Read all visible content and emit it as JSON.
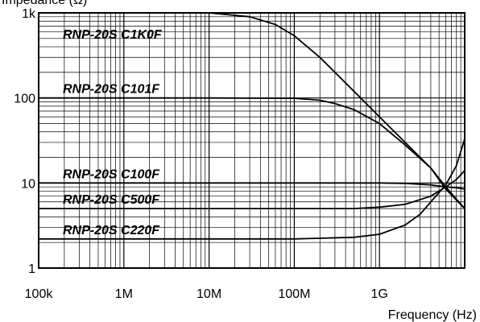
{
  "chart_data": {
    "type": "line",
    "title": "",
    "xlabel": "Frequency (Hz)",
    "ylabel": "Impedance (Ω)",
    "xscale": "log",
    "yscale": "log",
    "xlim": [
      100000,
      10000000000
    ],
    "ylim": [
      1,
      1000
    ],
    "grid": true,
    "x_ticks": [
      {
        "value": 100000,
        "label": "100k"
      },
      {
        "value": 1000000,
        "label": "1M"
      },
      {
        "value": 10000000,
        "label": "10M"
      },
      {
        "value": 100000000,
        "label": "100M"
      },
      {
        "value": 1000000000,
        "label": "1G"
      }
    ],
    "y_ticks": [
      {
        "value": 1,
        "label": "1"
      },
      {
        "value": 10,
        "label": "10"
      },
      {
        "value": 100,
        "label": "100"
      },
      {
        "value": 1000,
        "label": "1k"
      }
    ],
    "series": [
      {
        "name": "RNP-20S C1K0F",
        "x": [
          100000,
          1000000,
          10000000,
          30000000,
          60000000,
          100000000,
          200000000,
          300000000,
          500000000,
          1000000000,
          2000000000,
          4000000000,
          6000000000,
          10000000000
        ],
        "y": [
          1000,
          1000,
          1000,
          900,
          730,
          540,
          300,
          200,
          120,
          60,
          30,
          15,
          8.5,
          5
        ]
      },
      {
        "name": "RNP-20S C101F",
        "x": [
          100000,
          1000000,
          10000000,
          100000000,
          200000000,
          300000000,
          500000000,
          1000000000,
          2000000000,
          4000000000,
          6000000000,
          10000000000
        ],
        "y": [
          100,
          100,
          100,
          99,
          94,
          86,
          73,
          50,
          28,
          15,
          9,
          5
        ]
      },
      {
        "name": "RNP-20S C100F",
        "x": [
          100000,
          1000000,
          10000000,
          100000000,
          1000000000,
          2000000000,
          4000000000,
          6000000000,
          8000000000,
          10000000000
        ],
        "y": [
          10,
          10,
          10,
          10,
          10,
          9.9,
          9.5,
          9,
          8.8,
          8.5
        ]
      },
      {
        "name": "RNP-20S C500F",
        "x": [
          100000,
          1000000,
          10000000,
          100000000,
          500000000,
          1000000000,
          2000000000,
          4000000000,
          6000000000,
          8000000000,
          10000000000
        ],
        "y": [
          5,
          5,
          5,
          5,
          5,
          5.2,
          5.6,
          7,
          9,
          11,
          14
        ]
      },
      {
        "name": "RNP-20S C220F",
        "x": [
          100000,
          1000000,
          10000000,
          100000000,
          500000000,
          1000000000,
          2000000000,
          3000000000,
          4000000000,
          6000000000,
          8000000000,
          10000000000
        ],
        "y": [
          2.2,
          2.2,
          2.2,
          2.2,
          2.3,
          2.5,
          3.2,
          4.3,
          6,
          9.5,
          16,
          33
        ]
      }
    ]
  }
}
